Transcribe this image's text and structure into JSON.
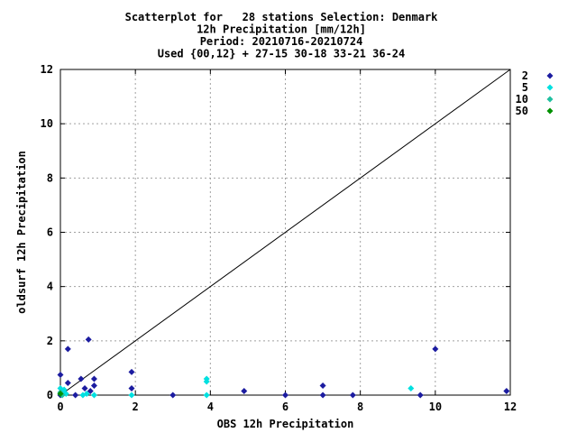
{
  "chart_data": {
    "type": "scatter",
    "title_lines": [
      "Scatterplot for   28 stations Selection: Denmark",
      "12h Precipitation [mm/12h]",
      "Period: 20210716-20210724",
      "Used {00,12} + 27-15 30-18 33-21 36-24"
    ],
    "xlabel": "OBS 12h Precipitation",
    "ylabel": "oldsurf 12h Precipitation",
    "xlim": [
      0,
      12
    ],
    "ylim": [
      0,
      12
    ],
    "xticks": [
      "0",
      "2",
      "4",
      "6",
      "8",
      "10",
      "12"
    ],
    "yticks": [
      "0",
      "2",
      "4",
      "6",
      "8",
      "10",
      "12"
    ],
    "grid": true,
    "diagonal": true,
    "legend_position": "right",
    "series": [
      {
        "name": "2",
        "color": "#1c1ca0",
        "points": [
          [
            0.0,
            0.75
          ],
          [
            0.0,
            0.0
          ],
          [
            0.2,
            1.7
          ],
          [
            0.2,
            0.45
          ],
          [
            0.4,
            0.0
          ],
          [
            0.55,
            0.6
          ],
          [
            0.65,
            0.25
          ],
          [
            0.75,
            2.05
          ],
          [
            0.8,
            0.15
          ],
          [
            0.9,
            0.6
          ],
          [
            0.9,
            0.35
          ],
          [
            1.9,
            0.85
          ],
          [
            1.9,
            0.25
          ],
          [
            3.0,
            0.0
          ],
          [
            4.9,
            0.15
          ],
          [
            6.0,
            0.0
          ],
          [
            7.0,
            0.35
          ],
          [
            7.0,
            0.0
          ],
          [
            7.8,
            0.0
          ],
          [
            9.6,
            0.0
          ],
          [
            10.0,
            1.7
          ],
          [
            11.9,
            0.15
          ]
        ]
      },
      {
        "name": "5",
        "color": "#00e0e0",
        "points": [
          [
            0.0,
            0.25
          ],
          [
            0.05,
            0.1
          ],
          [
            0.1,
            0.2
          ],
          [
            0.15,
            0.05
          ],
          [
            0.6,
            0.0
          ],
          [
            0.7,
            0.05
          ],
          [
            0.9,
            0.0
          ],
          [
            1.9,
            0.0
          ],
          [
            3.9,
            0.6
          ],
          [
            3.9,
            0.5
          ],
          [
            3.9,
            0.0
          ],
          [
            9.35,
            0.25
          ]
        ]
      },
      {
        "name": "10",
        "color": "#20c0a0",
        "points": [
          [
            0.0,
            0.1
          ],
          [
            0.05,
            0.0
          ]
        ]
      },
      {
        "name": "50",
        "color": "#009000",
        "points": [
          [
            0.0,
            0.05
          ]
        ]
      }
    ]
  }
}
